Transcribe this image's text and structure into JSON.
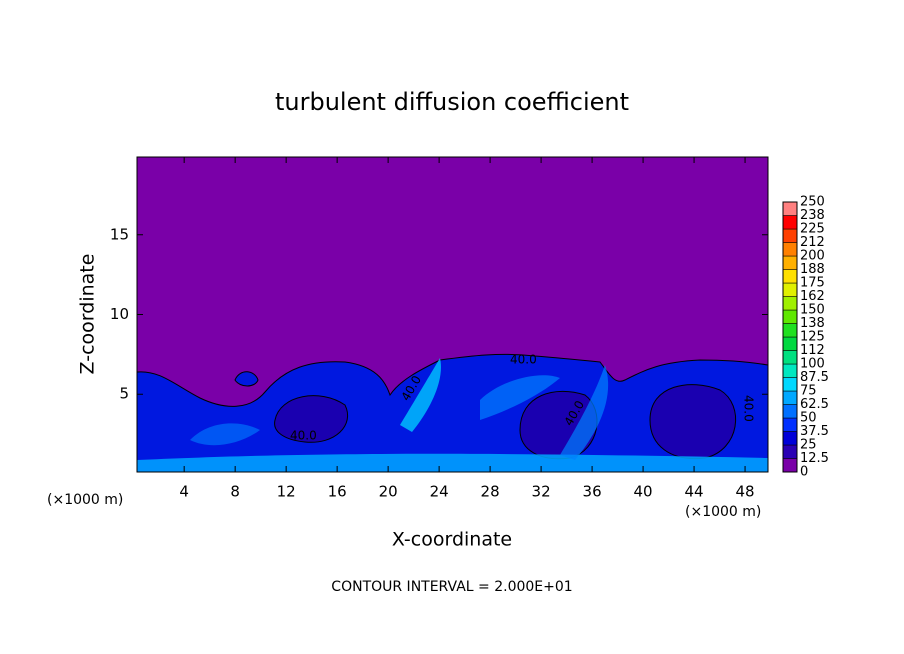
{
  "chart_data": {
    "type": "contour",
    "title": "turbulent diffusion coefficient",
    "x_label": "X-coordinate",
    "y_label": "Z-coordinate",
    "x_unit_label": "(×1000 m)",
    "footer": "CONTOUR INTERVAL = 2.000E+01",
    "contour_label": "40.0",
    "xlim": [
      0.3,
      49.8
    ],
    "ylim": [
      0.125,
      19.875
    ],
    "xticks": [
      4,
      8,
      12,
      16,
      20,
      24,
      28,
      32,
      36,
      40,
      44,
      48
    ],
    "yticks": [
      5,
      10,
      15
    ],
    "colorbar": {
      "ticks": [
        0,
        12.5,
        25,
        37.5,
        50,
        62.5,
        75,
        87.5,
        100,
        {
          "value": 112.5,
          "label": "112"
        },
        125,
        {
          "value": 137.5,
          "label": "138"
        },
        150,
        {
          "value": 162.5,
          "label": "162"
        },
        175,
        {
          "value": 187.5,
          "label": "188"
        },
        200,
        {
          "value": 212.5,
          "label": "212"
        },
        225,
        {
          "value": 237.5,
          "label": "238"
        },
        250
      ],
      "colors": [
        "#7a00a8",
        "#2a00b4",
        "#0000d8",
        "#0030ff",
        "#0070ff",
        "#00a8ff",
        "#00d8ff",
        "#00e8c0",
        "#00e080",
        "#00d840",
        "#20e020",
        "#60e800",
        "#a0f000",
        "#e0f000",
        "#ffe000",
        "#ffb000",
        "#ff8000",
        "#ff4000",
        "#ff0000",
        "#ff8080"
      ]
    }
  }
}
